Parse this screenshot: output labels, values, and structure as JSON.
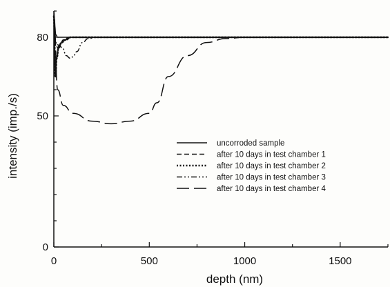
{
  "chart_data": {
    "type": "line",
    "xlabel": "depth (nm)",
    "ylabel": "intensity (imp./s)",
    "xlim": [
      0,
      1750
    ],
    "ylim": [
      0,
      90
    ],
    "xticks": [
      0,
      500,
      1000,
      1500
    ],
    "xtick_labels": [
      "0",
      "500",
      "1000",
      "1500"
    ],
    "yticks": [
      0,
      50,
      80
    ],
    "ytick_labels": [
      "0",
      "50",
      "80"
    ],
    "grid": false,
    "legend_position": "lower-right",
    "series": [
      {
        "name": "uncorroded sample",
        "dash": "solid",
        "x": [
          0,
          5,
          10,
          20,
          40,
          80,
          200,
          500,
          1000,
          1500,
          1750
        ],
        "y": [
          90,
          84,
          81,
          80,
          80,
          80,
          80,
          80,
          80,
          80,
          80
        ]
      },
      {
        "name": "after 10 days in test chamber 1",
        "dash": "short-dash",
        "x": [
          0,
          10,
          20,
          30,
          50,
          80,
          120,
          200,
          500,
          1000,
          1750
        ],
        "y": [
          88,
          78,
          76,
          77,
          79,
          80,
          80,
          80,
          80,
          80,
          80
        ]
      },
      {
        "name": "after 10 days in test chamber 2",
        "dash": "dotted",
        "x": [
          0,
          8,
          15,
          25,
          40,
          60,
          90,
          130,
          200,
          500,
          1000,
          1750
        ],
        "y": [
          88,
          65,
          72,
          76,
          78,
          79,
          80,
          80,
          80,
          80,
          80,
          80
        ]
      },
      {
        "name": "after 10 days in test chamber 3",
        "dash": "dash-dot-dot",
        "x": [
          0,
          10,
          25,
          45,
          65,
          85,
          100,
          120,
          150,
          180,
          220,
          300,
          1000,
          1750
        ],
        "y": [
          88,
          78,
          77,
          76,
          73,
          72,
          72.5,
          74.5,
          78,
          79.5,
          80,
          80,
          80,
          80
        ]
      },
      {
        "name": "after 10 days in test chamber 4",
        "dash": "long-dash",
        "x": [
          0,
          20,
          50,
          100,
          200,
          300,
          400,
          500,
          540,
          600,
          700,
          800,
          900,
          1000,
          1750
        ],
        "y": [
          88,
          60,
          54,
          51,
          48,
          47,
          48,
          51,
          55,
          65,
          73,
          78,
          79.5,
          80,
          80
        ]
      }
    ]
  }
}
